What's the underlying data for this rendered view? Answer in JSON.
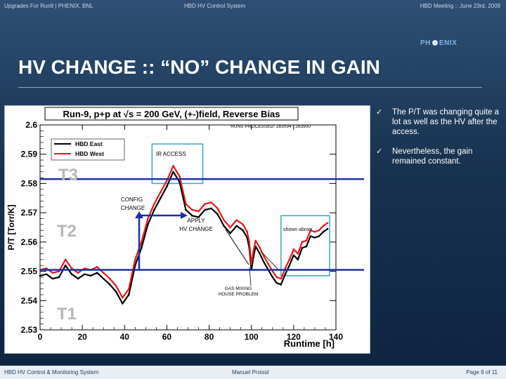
{
  "header": {
    "left": "Upgrades For Run9 | PHENIX, BNL",
    "center": "HBD HV Control System",
    "right": "HBD Meeting :: June 23rd, 2009"
  },
  "logo": {
    "text_left": "PH",
    "text_right": "ENIX"
  },
  "slide": {
    "title": "HV CHANGE :: “NO” CHANGE IN GAIN"
  },
  "bullets": [
    {
      "icon": "check-icon",
      "text": "The P/T was changing quite a lot as well as the HV after the access."
    },
    {
      "icon": "check-icon",
      "text": "Nevertheless, the gain remained constant."
    }
  ],
  "plot": {
    "title": "Run-9, p+p at √s = 200 GeV, (+-)field, Reverse Bias",
    "subtitle": "RUNS PROCESSED: 283094 - 283900",
    "ylabel": "P/T [Torr/K]",
    "xlabel": "Runtime [h]",
    "legend": [
      "HBD East",
      "HBD West"
    ],
    "xticks": [
      "0",
      "20",
      "40",
      "60",
      "80",
      "100",
      "120",
      "140"
    ],
    "yticks": [
      "2.53",
      "2.54",
      "2.55",
      "2.56",
      "2.57",
      "2.58",
      "2.59",
      "2.6"
    ],
    "annotations": {
      "ir_access": "IR ACCESS",
      "config_change": "CONFIG\nCHANGE",
      "apply_hv": "APPLY\nHV CHANGE",
      "shown_above": "shown above",
      "gas_mixing": "GAS MIXING\nHOUSE PROBLEM",
      "t3": "T3",
      "t2": "T2",
      "t1": "T1"
    },
    "colors": {
      "east": "#000000",
      "west": "#e8161a",
      "threshold": "#1c2fa0",
      "box": "#35a7c9"
    }
  },
  "footer": {
    "left": "HBD HV Control & Monitoring System",
    "center": "Manuel Proissl",
    "right": "Page 9 of 11"
  },
  "chart_data": {
    "type": "line",
    "title": "Run-9, p+p at √s = 200 GeV, (+-)field, Reverse Bias",
    "xlabel": "Runtime [h]",
    "ylabel": "P/T [Torr/K]",
    "xlim": [
      0,
      140
    ],
    "ylim": [
      2.53,
      2.6
    ],
    "legend_position": "top-left",
    "series": [
      {
        "name": "HBD East",
        "color": "#000000",
        "x": [
          0,
          3,
          6,
          9,
          12,
          15,
          18,
          21,
          24,
          27,
          30,
          33,
          36,
          39,
          42,
          45,
          48,
          51,
          54,
          57,
          60,
          63,
          66,
          69,
          72,
          75,
          78,
          81,
          84,
          87,
          90,
          93,
          96,
          98,
          99,
          100,
          101,
          102,
          104,
          106,
          108,
          110,
          112,
          114,
          116,
          118,
          120,
          122,
          124,
          126,
          128,
          130,
          132,
          134,
          136
        ],
        "y": [
          2.5485,
          2.549,
          2.5475,
          2.548,
          2.552,
          2.549,
          2.5475,
          2.549,
          2.5485,
          2.5495,
          2.5475,
          2.5455,
          2.543,
          2.539,
          2.542,
          2.552,
          2.558,
          2.566,
          2.571,
          2.575,
          2.579,
          2.584,
          2.5805,
          2.571,
          2.569,
          2.5685,
          2.571,
          2.5715,
          2.5695,
          2.5655,
          2.563,
          2.5655,
          2.564,
          2.5615,
          2.558,
          2.5505,
          2.555,
          2.5585,
          2.556,
          2.553,
          2.5505,
          2.548,
          2.546,
          2.5455,
          2.549,
          2.552,
          2.5555,
          2.554,
          2.558,
          2.5585,
          2.562,
          2.5615,
          2.562,
          2.5635,
          2.5645
        ]
      },
      {
        "name": "HBD West",
        "color": "#e8161a",
        "x": [
          0,
          3,
          6,
          9,
          12,
          15,
          18,
          21,
          24,
          27,
          30,
          33,
          36,
          39,
          42,
          45,
          48,
          51,
          54,
          57,
          60,
          63,
          66,
          69,
          72,
          75,
          78,
          81,
          84,
          87,
          90,
          93,
          96,
          98,
          99,
          100,
          101,
          102,
          104,
          106,
          108,
          110,
          112,
          114,
          116,
          118,
          120,
          122,
          124,
          126,
          128,
          130,
          132,
          134,
          136
        ],
        "y": [
          2.5505,
          2.551,
          2.5495,
          2.55,
          2.554,
          2.551,
          2.5495,
          2.551,
          2.5505,
          2.5515,
          2.5495,
          2.5475,
          2.545,
          2.541,
          2.544,
          2.554,
          2.56,
          2.568,
          2.573,
          2.577,
          2.581,
          2.586,
          2.5825,
          2.573,
          2.571,
          2.5705,
          2.573,
          2.5735,
          2.5715,
          2.5675,
          2.565,
          2.5675,
          2.566,
          2.5635,
          2.56,
          2.5525,
          2.557,
          2.5605,
          2.558,
          2.555,
          2.5525,
          2.55,
          2.548,
          2.5475,
          2.551,
          2.554,
          2.5575,
          2.556,
          2.56,
          2.5605,
          2.564,
          2.5635,
          2.564,
          2.5655,
          2.5665
        ]
      }
    ],
    "reference_lines": [
      {
        "label": "T3",
        "y": 2.5815
      },
      {
        "label": "T2",
        "y": 2.5505
      }
    ]
  }
}
